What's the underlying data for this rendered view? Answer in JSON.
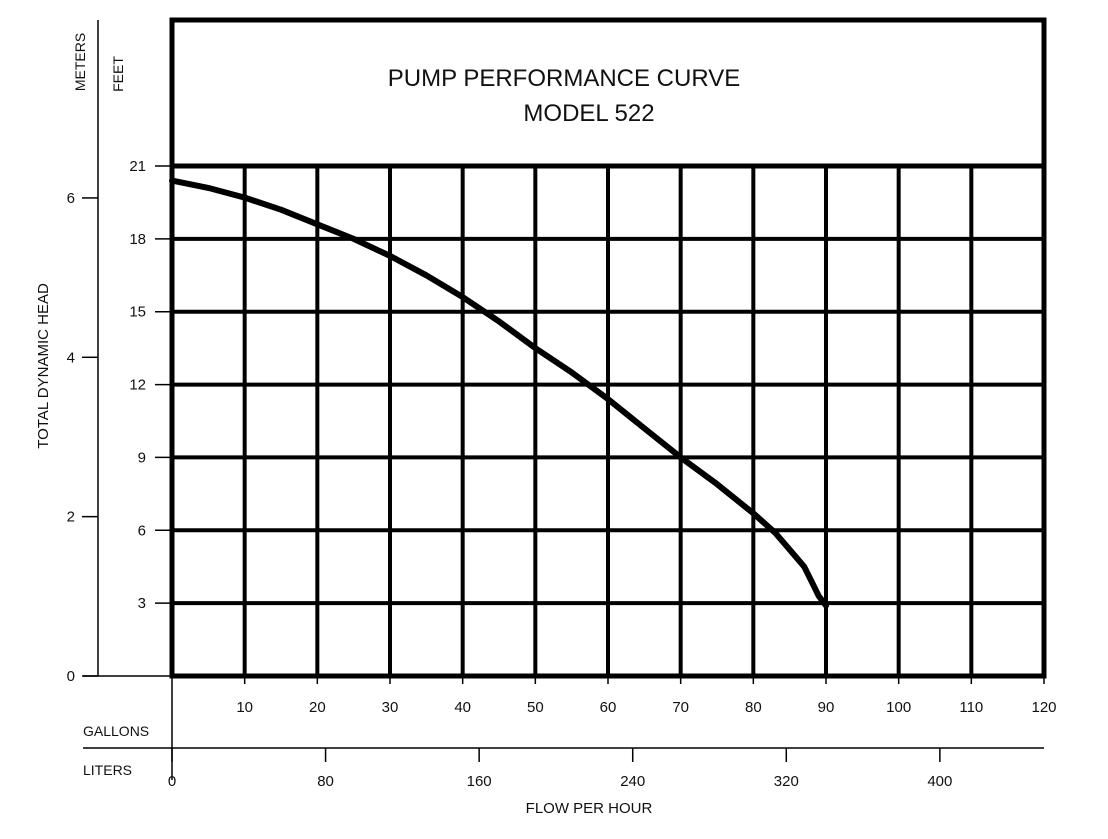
{
  "chart_data": {
    "type": "line",
    "title": "PUMP PERFORMANCE CURVE",
    "subtitle": "MODEL 522",
    "xlabel": "FLOW PER HOUR",
    "ylabel": "TOTAL DYNAMIC HEAD",
    "x_unit_primary": "GALLONS",
    "x_unit_secondary": "LITERS",
    "y_unit_primary": "FEET",
    "y_unit_secondary": "METERS",
    "xlim": [
      0,
      120
    ],
    "ylim": [
      0,
      21
    ],
    "x_ticks": [
      10,
      20,
      30,
      40,
      50,
      60,
      70,
      80,
      90,
      100,
      110,
      120
    ],
    "x_ticks_secondary": [
      0,
      80,
      160,
      240,
      320,
      400
    ],
    "y_ticks": [
      3,
      6,
      9,
      12,
      15,
      18,
      21
    ],
    "y_ticks_secondary": [
      0,
      2,
      4,
      6
    ],
    "grid": true,
    "series": [
      {
        "x": [
          0,
          5,
          10,
          15,
          20,
          25,
          30,
          35,
          40,
          45,
          50,
          55,
          60,
          65,
          70,
          75,
          80,
          83,
          85,
          87,
          88,
          89,
          90
        ],
        "y": [
          20.4,
          20.1,
          19.7,
          19.2,
          18.6,
          18.0,
          17.3,
          16.5,
          15.6,
          14.6,
          13.5,
          12.5,
          11.4,
          10.2,
          9.0,
          7.9,
          6.7,
          5.9,
          5.2,
          4.5,
          3.9,
          3.3,
          2.9
        ]
      }
    ]
  }
}
